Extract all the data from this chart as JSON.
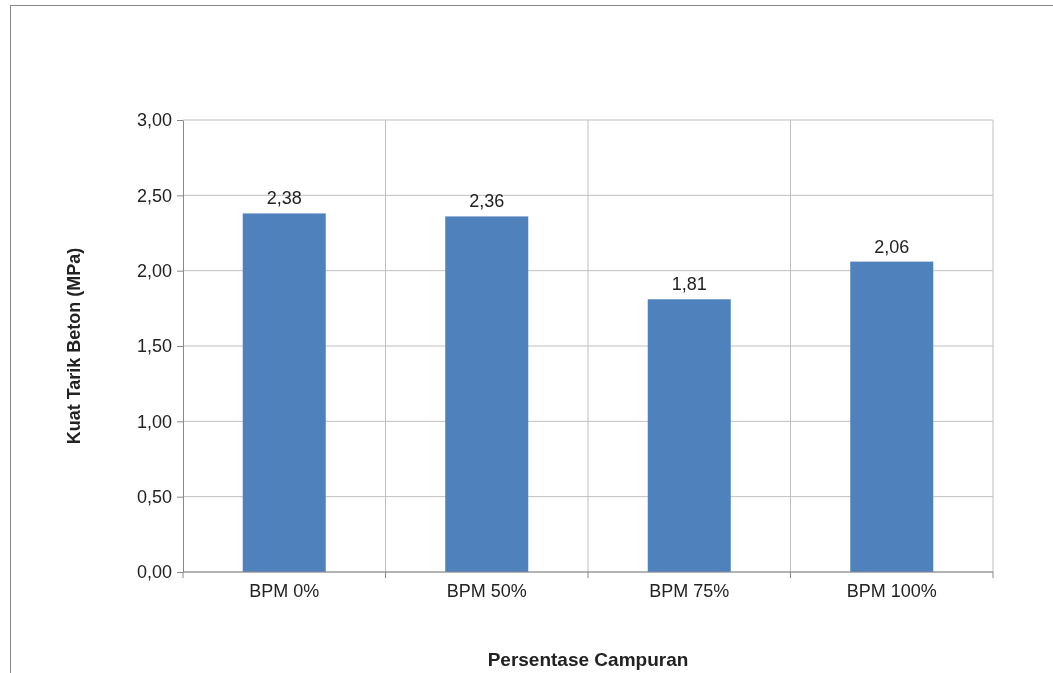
{
  "chart_data": {
    "type": "bar",
    "xlabel": "Persentase Campuran",
    "ylabel": "Kuat Tarik Beton (MPa)",
    "categories": [
      "BPM 0%",
      "BPM 50%",
      "BPM 75%",
      "BPM 100%"
    ],
    "values": [
      2.38,
      2.36,
      1.81,
      2.06
    ],
    "value_labels": [
      "2,38",
      "2,36",
      "1,81",
      "2,06"
    ],
    "color": "#4f81bd",
    "ylim": [
      0,
      3
    ],
    "yticks": [
      {
        "value": 0,
        "label": "0,00"
      },
      {
        "value": 0.5,
        "label": "0,50"
      },
      {
        "value": 1,
        "label": "1,00"
      },
      {
        "value": 1.5,
        "label": "1,50"
      },
      {
        "value": 2,
        "label": "2,00"
      },
      {
        "value": 2.5,
        "label": "2,50"
      },
      {
        "value": 3,
        "label": "3,00"
      }
    ],
    "grid": true
  }
}
